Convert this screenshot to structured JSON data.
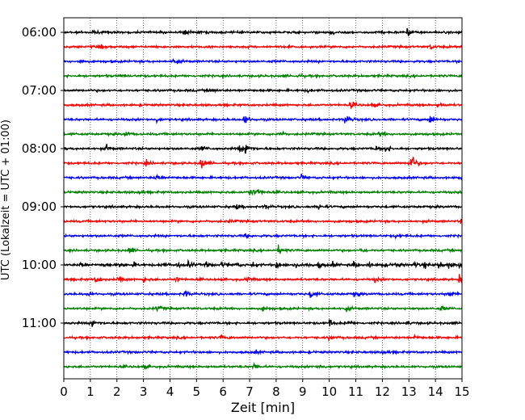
{
  "chart_data": {
    "type": "line",
    "title": "",
    "xlabel": "Zeit  [min]",
    "ylabel": "UTC (Lokalzeit = UTC + 01:00)",
    "xlim": [
      0,
      15
    ],
    "x_ticks": [
      "0",
      "1",
      "2",
      "3",
      "4",
      "5",
      "6",
      "7",
      "8",
      "9",
      "10",
      "11",
      "12",
      "13",
      "14",
      "15"
    ],
    "y_tick_labels": [
      "06:00",
      "07:00",
      "08:00",
      "09:00",
      "10:00",
      "11:00"
    ],
    "grid": "vertical-dotted",
    "traces": [
      {
        "start": "06:00",
        "color": "#000000",
        "events": [
          [
            1.1,
            0.25
          ],
          [
            4.55,
            0.45
          ],
          [
            9.95,
            0.5
          ],
          [
            12.95,
            0.5
          ],
          [
            14.9,
            0.4
          ]
        ]
      },
      {
        "start": "06:15",
        "color": "#ff0000",
        "events": [
          [
            1.35,
            0.25
          ],
          [
            13.8,
            0.35
          ]
        ]
      },
      {
        "start": "06:30",
        "color": "#0000ff",
        "events": [
          [
            4.1,
            0.5
          ],
          [
            0.6,
            0.2
          ]
        ]
      },
      {
        "start": "06:45",
        "color": "#008000",
        "events": [
          [
            2.1,
            0.2
          ],
          [
            8.8,
            0.2
          ]
        ]
      },
      {
        "start": "07:00",
        "color": "#000000",
        "events": [
          [
            5.5,
            0.25
          ],
          [
            9.2,
            0.2
          ]
        ]
      },
      {
        "start": "07:15",
        "color": "#ff0000",
        "events": [
          [
            10.8,
            0.55
          ],
          [
            11.6,
            0.3
          ],
          [
            14.1,
            0.3
          ]
        ]
      },
      {
        "start": "07:30",
        "color": "#0000ff",
        "events": [
          [
            6.8,
            0.8
          ],
          [
            10.6,
            0.8
          ],
          [
            13.8,
            0.7
          ],
          [
            3.5,
            0.3
          ]
        ]
      },
      {
        "start": "07:45",
        "color": "#008000",
        "events": [
          [
            2.3,
            0.35
          ],
          [
            8.1,
            0.5
          ],
          [
            11.9,
            0.4
          ]
        ]
      },
      {
        "start": "08:00",
        "color": "#000000",
        "events": [
          [
            1.6,
            0.4
          ],
          [
            5.2,
            0.45
          ],
          [
            6.6,
            0.45
          ],
          [
            6.85,
            0.9
          ],
          [
            12.1,
            0.7
          ],
          [
            11.75,
            0.35
          ]
        ]
      },
      {
        "start": "08:15",
        "color": "#ff0000",
        "events": [
          [
            3.05,
            0.4
          ],
          [
            5.15,
            1.0
          ],
          [
            13.1,
            1.0
          ],
          [
            13.0,
            0.6
          ]
        ]
      },
      {
        "start": "08:30",
        "color": "#0000ff",
        "events": [
          [
            3.45,
            0.6
          ],
          [
            8.95,
            0.4
          ],
          [
            14.9,
            0.3
          ]
        ]
      },
      {
        "start": "08:45",
        "color": "#008000",
        "events": [
          [
            7.0,
            0.6
          ],
          [
            7.3,
            0.5
          ],
          [
            2.8,
            0.25
          ]
        ]
      },
      {
        "start": "09:00",
        "color": "#000000",
        "events": [
          [
            6.5,
            0.35
          ],
          [
            7.6,
            0.35
          ],
          [
            9.6,
            0.45
          ]
        ]
      },
      {
        "start": "09:15",
        "color": "#ff0000",
        "events": [
          [
            6.2,
            0.2
          ],
          [
            14.95,
            0.3
          ]
        ]
      },
      {
        "start": "09:30",
        "color": "#0000ff",
        "events": [
          [
            6.8,
            0.25
          ],
          [
            12.5,
            0.2
          ]
        ]
      },
      {
        "start": "09:45",
        "color": "#008000",
        "events": [
          [
            2.45,
            0.45
          ],
          [
            8.1,
            0.7
          ],
          [
            11.2,
            0.3
          ]
        ]
      },
      {
        "start": "10:00",
        "color": "#000000",
        "events": [
          [
            0.6,
            0.4
          ],
          [
            1.5,
            0.3
          ],
          [
            2.1,
            0.3
          ],
          [
            2.6,
            0.3
          ],
          [
            3.7,
            0.3
          ],
          [
            4.25,
            0.4
          ],
          [
            4.7,
            0.5
          ],
          [
            5.35,
            0.35
          ],
          [
            5.95,
            0.3
          ],
          [
            6.45,
            0.35
          ],
          [
            7.1,
            0.4
          ],
          [
            8.0,
            0.45
          ],
          [
            8.65,
            0.4
          ],
          [
            9.1,
            0.35
          ],
          [
            9.6,
            0.4
          ],
          [
            10.1,
            0.35
          ],
          [
            10.9,
            0.4
          ],
          [
            11.45,
            0.35
          ],
          [
            12.0,
            0.35
          ],
          [
            12.5,
            0.4
          ],
          [
            13.2,
            0.35
          ],
          [
            13.6,
            0.35
          ],
          [
            14.1,
            0.55
          ],
          [
            14.5,
            0.35
          ],
          [
            14.9,
            0.45
          ]
        ]
      },
      {
        "start": "10:15",
        "color": "#ff0000",
        "events": [
          [
            1.2,
            0.45
          ],
          [
            2.05,
            0.4
          ],
          [
            3.0,
            0.35
          ],
          [
            4.2,
            0.3
          ],
          [
            6.9,
            0.3
          ],
          [
            11.7,
            0.3
          ],
          [
            14.9,
            0.55
          ]
        ]
      },
      {
        "start": "10:30",
        "color": "#0000ff",
        "events": [
          [
            0.9,
            0.3
          ],
          [
            4.55,
            0.55
          ],
          [
            9.3,
            0.6
          ],
          [
            10.95,
            0.35
          ],
          [
            14.5,
            0.4
          ]
        ]
      },
      {
        "start": "10:45",
        "color": "#008000",
        "events": [
          [
            3.5,
            0.4
          ],
          [
            7.5,
            0.3
          ],
          [
            10.6,
            0.3
          ],
          [
            14.2,
            0.3
          ]
        ]
      },
      {
        "start": "11:00",
        "color": "#000000",
        "events": [
          [
            1.05,
            0.6
          ],
          [
            10.0,
            0.55
          ],
          [
            10.7,
            0.3
          ],
          [
            12.9,
            0.2
          ]
        ]
      },
      {
        "start": "11:15",
        "color": "#ff0000",
        "events": [
          [
            5.9,
            0.3
          ],
          [
            10.0,
            0.25
          ],
          [
            13.2,
            0.25
          ]
        ]
      },
      {
        "start": "11:30",
        "color": "#0000ff",
        "events": [
          [
            12.0,
            0.3
          ],
          [
            7.2,
            0.2
          ]
        ]
      },
      {
        "start": "11:45",
        "color": "#008000",
        "events": [
          [
            7.15,
            0.4
          ],
          [
            9.6,
            0.3
          ],
          [
            3.0,
            0.25
          ]
        ]
      }
    ]
  }
}
